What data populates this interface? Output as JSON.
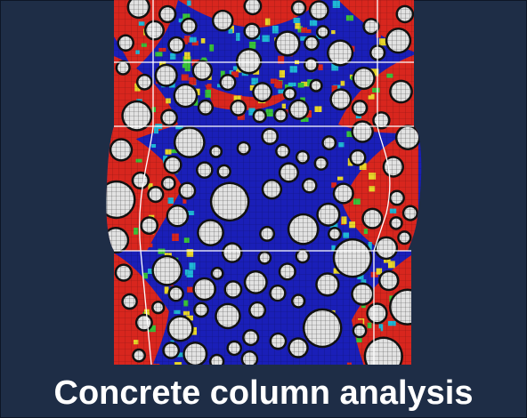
{
  "caption": "Concrete column analysis",
  "colors": {
    "background": "#1e2d46",
    "elastic_matrix": "#1a1fb8",
    "damaged_matrix": "#d8261e",
    "transition_cyan": "#1fb7d6",
    "transition_green": "#39c23a",
    "transition_yellow": "#e8d62a",
    "aggregate_fill": "#d9d9d9",
    "aggregate_outline": "#111111",
    "section_line": "#ffffff"
  },
  "figure": {
    "description_icon": "finite-element-mesh-icon"
  }
}
